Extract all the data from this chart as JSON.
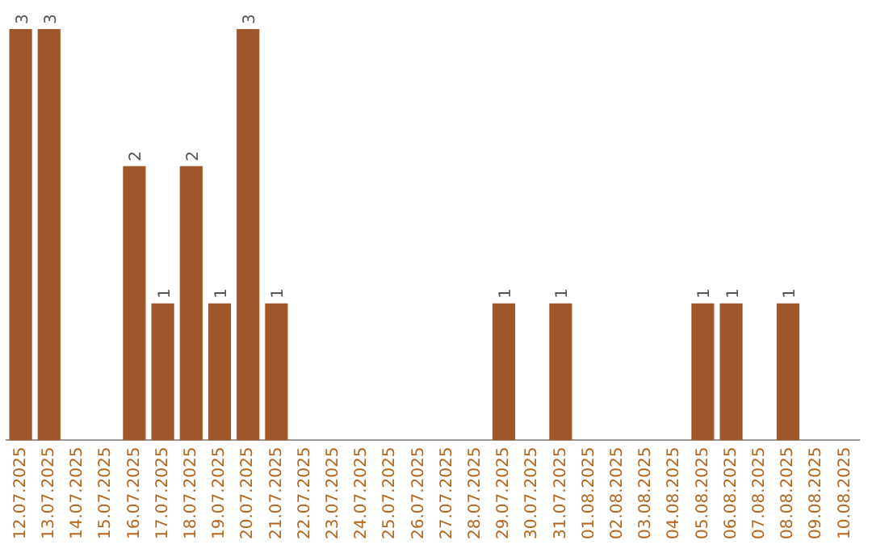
{
  "chart_data": {
    "type": "bar",
    "categories": [
      "12.07.2025",
      "13.07.2025",
      "14.07.2025",
      "15.07.2025",
      "16.07.2025",
      "17.07.2025",
      "18.07.2025",
      "19.07.2025",
      "20.07.2025",
      "21.07.2025",
      "22.07.2025",
      "23.07.2025",
      "24.07.2025",
      "25.07.2025",
      "26.07.2025",
      "27.07.2025",
      "28.07.2025",
      "29.07.2025",
      "30.07.2025",
      "31.07.2025",
      "01.08.2025",
      "02.08.2025",
      "03.08.2025",
      "04.08.2025",
      "05.08.2025",
      "06.08.2025",
      "07.08.2025",
      "08.08.2025",
      "09.08.2025",
      "10.08.2025"
    ],
    "values": [
      3,
      3,
      0,
      0,
      2,
      1,
      2,
      1,
      3,
      1,
      0,
      0,
      0,
      0,
      0,
      0,
      0,
      1,
      0,
      1,
      0,
      0,
      0,
      0,
      1,
      1,
      0,
      1,
      0,
      0
    ],
    "value_labels": [
      "3",
      "3",
      null,
      null,
      "2",
      "1",
      "2",
      "1",
      "3",
      "1",
      null,
      null,
      null,
      null,
      null,
      null,
      null,
      "1",
      null,
      "1",
      null,
      null,
      null,
      null,
      "1",
      "1",
      null,
      "1",
      null,
      null
    ],
    "color": "#a0582a"
  }
}
